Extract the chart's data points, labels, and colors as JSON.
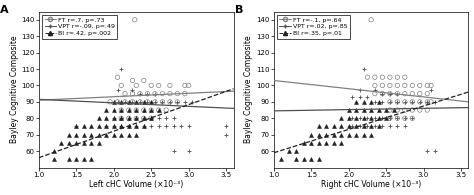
{
  "panel_A": {
    "title": "A",
    "xlabel": "Left cHC Volume (×10⁻³)",
    "ylabel": "Bayley Cognitive Composite",
    "xlim": [
      1.0,
      3.6
    ],
    "ylim": [
      50,
      145
    ],
    "yticks": [
      60,
      70,
      80,
      90,
      100,
      110,
      120,
      130,
      140
    ],
    "xticks": [
      1.0,
      1.5,
      2.0,
      2.5,
      3.0,
      3.5
    ],
    "legend": [
      {
        "label": "FT r=.7, p=.73",
        "marker": "o",
        "linestyle": "solid",
        "color_key": "FT"
      },
      {
        "label": "VPT r=-.09, p=.49",
        "marker": "+",
        "linestyle": "solid",
        "color_key": "VPT"
      },
      {
        "label": "BI r=.42, p=.002",
        "marker": "^",
        "linestyle": "dashed",
        "color_key": "BI"
      }
    ],
    "FT_scatter": [
      [
        2.28,
        140
      ],
      [
        2.05,
        105
      ],
      [
        2.25,
        103
      ],
      [
        2.4,
        103
      ],
      [
        2.1,
        100
      ],
      [
        2.3,
        100
      ],
      [
        2.5,
        100
      ],
      [
        2.6,
        100
      ],
      [
        2.75,
        100
      ],
      [
        2.95,
        100
      ],
      [
        3.0,
        100
      ],
      [
        2.15,
        95
      ],
      [
        2.25,
        95
      ],
      [
        2.35,
        95
      ],
      [
        2.45,
        95
      ],
      [
        2.55,
        95
      ],
      [
        2.65,
        95
      ],
      [
        2.75,
        95
      ],
      [
        2.85,
        95
      ],
      [
        2.95,
        95
      ],
      [
        1.95,
        90
      ],
      [
        2.05,
        90
      ],
      [
        2.15,
        90
      ],
      [
        2.25,
        90
      ],
      [
        2.35,
        90
      ],
      [
        2.45,
        90
      ],
      [
        2.55,
        90
      ],
      [
        2.65,
        90
      ],
      [
        2.75,
        90
      ],
      [
        2.85,
        90
      ],
      [
        2.1,
        85
      ],
      [
        2.2,
        85
      ],
      [
        2.3,
        85
      ],
      [
        2.4,
        85
      ],
      [
        2.5,
        85
      ],
      [
        2.6,
        85
      ],
      [
        2.7,
        85
      ],
      [
        2.1,
        80
      ],
      [
        2.2,
        80
      ],
      [
        2.3,
        80
      ],
      [
        2.4,
        80
      ],
      [
        2.5,
        80
      ]
    ],
    "VPT_scatter": [
      [
        2.1,
        110
      ],
      [
        2.05,
        97
      ],
      [
        2.25,
        97
      ],
      [
        2.35,
        95
      ],
      [
        2.45,
        95
      ],
      [
        2.55,
        95
      ],
      [
        2.05,
        90
      ],
      [
        2.15,
        90
      ],
      [
        2.25,
        90
      ],
      [
        2.35,
        90
      ],
      [
        2.45,
        90
      ],
      [
        2.55,
        90
      ],
      [
        2.65,
        90
      ],
      [
        2.75,
        90
      ],
      [
        2.85,
        90
      ],
      [
        2.95,
        90
      ],
      [
        3.05,
        90
      ],
      [
        2.0,
        80
      ],
      [
        2.1,
        80
      ],
      [
        2.2,
        80
      ],
      [
        2.3,
        80
      ],
      [
        2.4,
        80
      ],
      [
        2.5,
        80
      ],
      [
        2.6,
        80
      ],
      [
        2.7,
        80
      ],
      [
        2.8,
        80
      ],
      [
        1.9,
        75
      ],
      [
        2.0,
        75
      ],
      [
        2.1,
        75
      ],
      [
        2.2,
        75
      ],
      [
        2.3,
        75
      ],
      [
        2.4,
        75
      ],
      [
        2.5,
        75
      ],
      [
        2.6,
        75
      ],
      [
        2.7,
        75
      ],
      [
        2.8,
        75
      ],
      [
        2.9,
        75
      ],
      [
        3.0,
        75
      ],
      [
        3.5,
        75
      ],
      [
        3.5,
        70
      ],
      [
        1.5,
        75
      ],
      [
        3.0,
        60
      ],
      [
        2.8,
        60
      ]
    ],
    "BI_scatter": [
      [
        1.2,
        55
      ],
      [
        1.4,
        55
      ],
      [
        1.5,
        55
      ],
      [
        1.6,
        55
      ],
      [
        1.7,
        55
      ],
      [
        1.2,
        60
      ],
      [
        1.3,
        65
      ],
      [
        1.4,
        65
      ],
      [
        1.5,
        65
      ],
      [
        1.6,
        65
      ],
      [
        1.7,
        65
      ],
      [
        1.8,
        65
      ],
      [
        1.4,
        70
      ],
      [
        1.5,
        70
      ],
      [
        1.6,
        70
      ],
      [
        1.7,
        70
      ],
      [
        1.8,
        70
      ],
      [
        1.9,
        70
      ],
      [
        2.0,
        70
      ],
      [
        2.1,
        70
      ],
      [
        2.2,
        70
      ],
      [
        2.3,
        70
      ],
      [
        1.5,
        75
      ],
      [
        1.6,
        75
      ],
      [
        1.7,
        75
      ],
      [
        1.8,
        75
      ],
      [
        1.9,
        75
      ],
      [
        2.0,
        75
      ],
      [
        2.1,
        75
      ],
      [
        2.2,
        75
      ],
      [
        2.3,
        75
      ],
      [
        2.4,
        75
      ],
      [
        1.8,
        80
      ],
      [
        1.9,
        80
      ],
      [
        2.0,
        80
      ],
      [
        2.1,
        80
      ],
      [
        2.2,
        80
      ],
      [
        2.3,
        80
      ],
      [
        2.4,
        80
      ],
      [
        2.5,
        80
      ],
      [
        1.9,
        85
      ],
      [
        2.0,
        85
      ],
      [
        2.1,
        85
      ],
      [
        2.2,
        85
      ],
      [
        2.3,
        85
      ],
      [
        2.4,
        85
      ],
      [
        2.5,
        85
      ],
      [
        2.6,
        85
      ],
      [
        2.0,
        90
      ],
      [
        2.1,
        90
      ],
      [
        2.2,
        90
      ],
      [
        2.3,
        90
      ],
      [
        2.4,
        90
      ],
      [
        2.5,
        90
      ]
    ],
    "FT_line": [
      [
        1.0,
        91.0
      ],
      [
        3.6,
        96.5
      ]
    ],
    "VPT_line": [
      [
        1.0,
        91.5
      ],
      [
        3.6,
        86.0
      ]
    ],
    "BI_line": [
      [
        1.0,
        56.0
      ],
      [
        3.6,
        98.0
      ]
    ]
  },
  "panel_B": {
    "title": "B",
    "xlabel": "Right cHC Volume (×10⁻³)",
    "ylabel": "Bayley Cognitive Composite",
    "xlim": [
      1.0,
      3.6
    ],
    "ylim": [
      50,
      145
    ],
    "yticks": [
      60,
      70,
      80,
      90,
      100,
      110,
      120,
      130,
      140
    ],
    "xticks": [
      1.0,
      1.5,
      2.0,
      2.5,
      3.0,
      3.5
    ],
    "legend": [
      {
        "label": "FT r=-.1, p=.64",
        "marker": "o",
        "linestyle": "solid",
        "color_key": "FT"
      },
      {
        "label": "VPT r=.02, p=.85",
        "marker": "+",
        "linestyle": "solid",
        "color_key": "VPT"
      },
      {
        "label": "BI r=.35, p=.01",
        "marker": "^",
        "linestyle": "dashed",
        "color_key": "BI"
      }
    ],
    "FT_scatter": [
      [
        2.3,
        140
      ],
      [
        2.25,
        105
      ],
      [
        2.35,
        105
      ],
      [
        2.45,
        105
      ],
      [
        2.55,
        105
      ],
      [
        2.65,
        105
      ],
      [
        2.75,
        105
      ],
      [
        2.35,
        100
      ],
      [
        2.45,
        100
      ],
      [
        2.55,
        100
      ],
      [
        2.65,
        100
      ],
      [
        2.75,
        100
      ],
      [
        2.85,
        100
      ],
      [
        2.95,
        100
      ],
      [
        3.05,
        100
      ],
      [
        3.1,
        100
      ],
      [
        2.35,
        95
      ],
      [
        2.45,
        95
      ],
      [
        2.55,
        95
      ],
      [
        2.65,
        95
      ],
      [
        2.75,
        95
      ],
      [
        2.85,
        95
      ],
      [
        2.95,
        95
      ],
      [
        3.05,
        95
      ],
      [
        2.55,
        90
      ],
      [
        2.65,
        90
      ],
      [
        2.75,
        90
      ],
      [
        2.85,
        90
      ],
      [
        2.95,
        90
      ],
      [
        3.05,
        90
      ],
      [
        3.1,
        90
      ],
      [
        2.55,
        85
      ],
      [
        2.65,
        85
      ],
      [
        2.75,
        85
      ],
      [
        2.85,
        85
      ],
      [
        2.95,
        85
      ],
      [
        3.05,
        85
      ],
      [
        2.55,
        80
      ],
      [
        2.65,
        80
      ],
      [
        2.75,
        80
      ],
      [
        2.85,
        80
      ]
    ],
    "VPT_scatter": [
      [
        2.2,
        110
      ],
      [
        2.15,
        97
      ],
      [
        2.35,
        97
      ],
      [
        2.45,
        95
      ],
      [
        2.55,
        95
      ],
      [
        2.65,
        95
      ],
      [
        2.05,
        93
      ],
      [
        2.15,
        93
      ],
      [
        2.25,
        93
      ],
      [
        2.35,
        90
      ],
      [
        2.45,
        90
      ],
      [
        2.55,
        90
      ],
      [
        2.65,
        90
      ],
      [
        2.75,
        90
      ],
      [
        2.85,
        90
      ],
      [
        2.95,
        90
      ],
      [
        3.05,
        90
      ],
      [
        3.15,
        90
      ],
      [
        2.05,
        80
      ],
      [
        2.15,
        80
      ],
      [
        2.25,
        80
      ],
      [
        2.35,
        80
      ],
      [
        2.45,
        80
      ],
      [
        2.55,
        80
      ],
      [
        2.65,
        80
      ],
      [
        2.75,
        80
      ],
      [
        2.85,
        80
      ],
      [
        2.05,
        75
      ],
      [
        2.15,
        75
      ],
      [
        2.25,
        75
      ],
      [
        2.35,
        75
      ],
      [
        2.45,
        75
      ],
      [
        2.55,
        75
      ],
      [
        2.65,
        75
      ],
      [
        2.75,
        75
      ],
      [
        3.05,
        60
      ],
      [
        3.15,
        60
      ],
      [
        3.1,
        97
      ]
    ],
    "BI_scatter": [
      [
        1.1,
        55
      ],
      [
        1.3,
        55
      ],
      [
        1.4,
        55
      ],
      [
        1.5,
        55
      ],
      [
        1.6,
        55
      ],
      [
        1.2,
        60
      ],
      [
        1.3,
        60
      ],
      [
        1.4,
        65
      ],
      [
        1.5,
        65
      ],
      [
        1.6,
        65
      ],
      [
        1.7,
        65
      ],
      [
        1.8,
        65
      ],
      [
        1.9,
        65
      ],
      [
        1.5,
        70
      ],
      [
        1.6,
        70
      ],
      [
        1.7,
        70
      ],
      [
        1.8,
        70
      ],
      [
        1.9,
        70
      ],
      [
        2.0,
        70
      ],
      [
        2.1,
        70
      ],
      [
        2.2,
        70
      ],
      [
        2.3,
        70
      ],
      [
        1.6,
        75
      ],
      [
        1.7,
        75
      ],
      [
        1.8,
        75
      ],
      [
        1.9,
        75
      ],
      [
        2.0,
        75
      ],
      [
        2.1,
        75
      ],
      [
        2.2,
        75
      ],
      [
        2.3,
        75
      ],
      [
        2.4,
        75
      ],
      [
        1.9,
        80
      ],
      [
        2.0,
        80
      ],
      [
        2.1,
        80
      ],
      [
        2.2,
        80
      ],
      [
        2.3,
        80
      ],
      [
        2.4,
        80
      ],
      [
        2.5,
        80
      ],
      [
        2.0,
        85
      ],
      [
        2.1,
        85
      ],
      [
        2.2,
        85
      ],
      [
        2.3,
        85
      ],
      [
        2.4,
        85
      ],
      [
        2.5,
        85
      ],
      [
        2.6,
        85
      ],
      [
        2.1,
        90
      ],
      [
        2.2,
        90
      ],
      [
        2.3,
        90
      ],
      [
        2.4,
        90
      ]
    ],
    "FT_line": [
      [
        1.0,
        103.0
      ],
      [
        3.6,
        90.0
      ]
    ],
    "VPT_line": [
      [
        1.0,
        84.5
      ],
      [
        3.6,
        86.5
      ]
    ],
    "BI_line": [
      [
        1.0,
        59.0
      ],
      [
        3.6,
        96.0
      ]
    ]
  },
  "colors": {
    "FT": "#808080",
    "VPT": "#505050",
    "BI": "#202020"
  },
  "ms_circle": 10,
  "ms_plus": 10,
  "ms_tri": 8,
  "lw": 0.9,
  "tick_fs": 5,
  "label_fs": 5.5,
  "legend_fs": 4.5,
  "panel_label_fs": 8
}
